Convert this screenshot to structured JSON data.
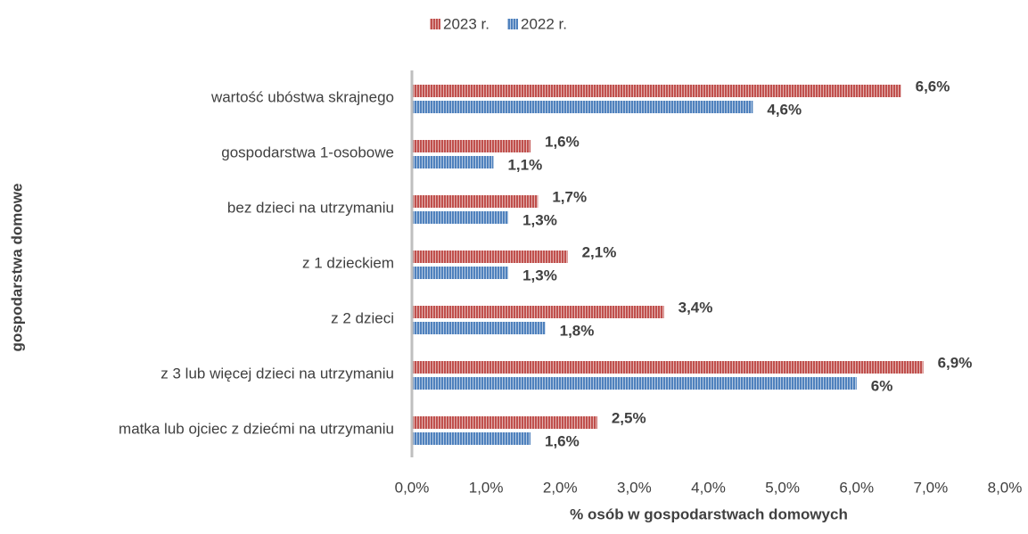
{
  "chart_data": {
    "type": "hbar",
    "x_label": "% osób w gospodarstwach domowych",
    "y_label": "gospodarstwa domowe",
    "categories": [
      "wartość ubóstwa skrajnego",
      "gospodarstwa 1-osobowe",
      "bez dzieci na utrzymaniu",
      "z 1 dzieckiem",
      "z 2 dzieci",
      "z 3 lub więcej dzieci na utrzymaniu",
      "matka lub ojciec z dziećmi na utrzymaniu"
    ],
    "series": [
      {
        "name": "2023 r.",
        "color": "#c0504d",
        "values": [
          6.6,
          1.6,
          1.7,
          2.1,
          3.4,
          6.9,
          2.5
        ],
        "value_labels": [
          "6,6%",
          "1,6%",
          "1,7%",
          "2,1%",
          "3,4%",
          "6,9%",
          "2,5%"
        ]
      },
      {
        "name": "2022 r.",
        "color": "#4f81bd",
        "values": [
          4.6,
          1.1,
          1.3,
          1.3,
          1.8,
          6,
          1.6
        ],
        "value_labels": [
          "4,6%",
          "1,1%",
          "1,3%",
          "1,3%",
          "1,8%",
          "6%",
          "1,6%"
        ]
      }
    ],
    "xlim": [
      0,
      8
    ],
    "xticks": [
      {
        "value": 0,
        "label": "0,0%"
      },
      {
        "value": 1,
        "label": "1,0%"
      },
      {
        "value": 2,
        "label": "2,0%"
      },
      {
        "value": 3,
        "label": "3,0%"
      },
      {
        "value": 4,
        "label": "4,0%"
      },
      {
        "value": 5,
        "label": "5,0%"
      },
      {
        "value": 6,
        "label": "6,0%"
      },
      {
        "value": 7,
        "label": "7,0%"
      },
      {
        "value": 8,
        "label": "8,0%"
      }
    ],
    "legend": "top"
  }
}
